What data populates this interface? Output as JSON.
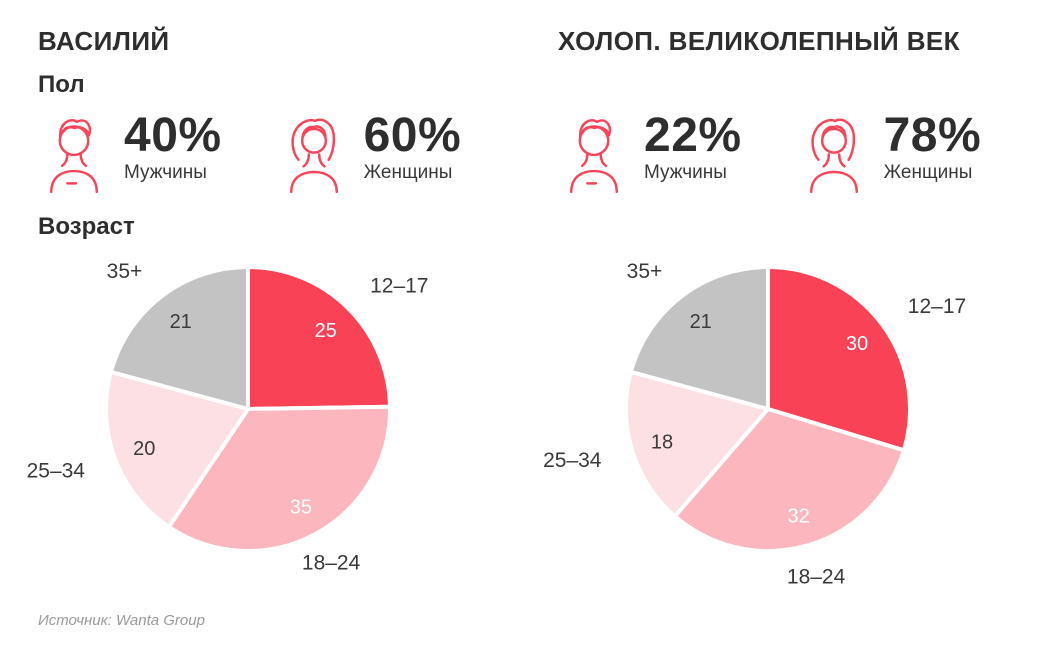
{
  "colors": {
    "accent": "#f94459",
    "text_dark": "#2e2e2e",
    "text_muted": "#9a9a9a",
    "pie_stroke": "#ffffff"
  },
  "source_note": "Источник: Wanta Group",
  "panels": [
    {
      "title": "ВАСИЛИЙ",
      "gender_section_label": "Пол",
      "age_section_label": "Возраст",
      "genders": [
        {
          "name": "male",
          "percent": "40%",
          "label": "Мужчины"
        },
        {
          "name": "female",
          "percent": "60%",
          "label": "Женщины"
        }
      ],
      "age_slices": [
        {
          "key": "12-17",
          "label": "12–17",
          "value": 25,
          "color": "#f94256",
          "value_color": "#ffffff"
        },
        {
          "key": "18-24",
          "label": "18–24",
          "value": 35,
          "color": "#fbb6be",
          "value_color": "#ffffff"
        },
        {
          "key": "25-34",
          "label": "25–34",
          "value": 20,
          "color": "#fce0e4",
          "value_color": "#3a3a3a"
        },
        {
          "key": "35plus",
          "label": "35+",
          "value": 21,
          "color": "#c4c3c3",
          "value_color": "#3a3a3a"
        }
      ]
    },
    {
      "title": "ХОЛОП. ВЕЛИКОЛЕПНЫЙ ВЕК",
      "genders": [
        {
          "name": "male",
          "percent": "22%",
          "label": "Мужчины"
        },
        {
          "name": "female",
          "percent": "78%",
          "label": "Женщины"
        }
      ],
      "age_slices": [
        {
          "key": "12-17",
          "label": "12–17",
          "value": 30,
          "color": "#f94256",
          "value_color": "#ffffff"
        },
        {
          "key": "18-24",
          "label": "18–24",
          "value": 32,
          "color": "#fbb6be",
          "value_color": "#ffffff"
        },
        {
          "key": "25-34",
          "label": "25–34",
          "value": 18,
          "color": "#fce0e4",
          "value_color": "#3a3a3a"
        },
        {
          "key": "35plus",
          "label": "35+",
          "value": 21,
          "color": "#c4c3c3",
          "value_color": "#3a3a3a"
        }
      ]
    }
  ],
  "chart_data": [
    {
      "type": "pie",
      "title": "ВАСИЛИЙ",
      "section_labels": {
        "gender": "Пол",
        "age": "Возраст"
      },
      "gender": {
        "Мужчины": 40,
        "Женщины": 60
      },
      "categories": [
        "12–17",
        "18–24",
        "25–34",
        "35+"
      ],
      "values": [
        25,
        35,
        20,
        21
      ],
      "colors": [
        "#f94256",
        "#fbb6be",
        "#fce0e4",
        "#c4c3c3"
      ],
      "start_angle_deg": -90,
      "direction": "clockwise",
      "legend": "none",
      "labels": "category outside, value inside"
    },
    {
      "type": "pie",
      "title": "ХОЛОП. ВЕЛИКОЛЕПНЫЙ ВЕК",
      "gender": {
        "Мужчины": 22,
        "Женщины": 78
      },
      "categories": [
        "12–17",
        "18–24",
        "25–34",
        "35+"
      ],
      "values": [
        30,
        32,
        18,
        21
      ],
      "colors": [
        "#f94256",
        "#fbb6be",
        "#fce0e4",
        "#c4c3c3"
      ],
      "start_angle_deg": -90,
      "direction": "clockwise",
      "legend": "none",
      "labels": "category outside, value inside"
    }
  ]
}
